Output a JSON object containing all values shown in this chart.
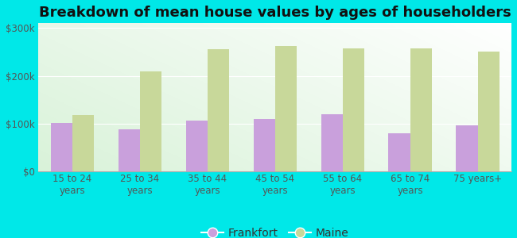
{
  "title": "Breakdown of mean house values by ages of householders",
  "categories": [
    "15 to 24\nyears",
    "25 to 34\nyears",
    "35 to 44\nyears",
    "45 to 54\nyears",
    "55 to 64\nyears",
    "65 to 74\nyears",
    "75 years+"
  ],
  "frankfort_values": [
    101000,
    88000,
    107000,
    110000,
    120000,
    80000,
    97000
  ],
  "maine_values": [
    118000,
    210000,
    255000,
    262000,
    258000,
    257000,
    250000
  ],
  "frankfort_color": "#c9a0dc",
  "maine_color": "#c8d89a",
  "background_color": "#00e8e8",
  "plot_bg_topleft": "#d8efd8",
  "plot_bg_bottomright": "#ffffff",
  "ylabel_ticks": [
    0,
    100000,
    200000,
    300000
  ],
  "ytick_labels": [
    "$0",
    "$100k",
    "$200k",
    "$300k"
  ],
  "ylim": [
    0,
    310000
  ],
  "legend_labels": [
    "Frankfort",
    "Maine"
  ],
  "bar_width": 0.32,
  "title_fontsize": 13,
  "tick_fontsize": 8.5,
  "legend_fontsize": 10
}
